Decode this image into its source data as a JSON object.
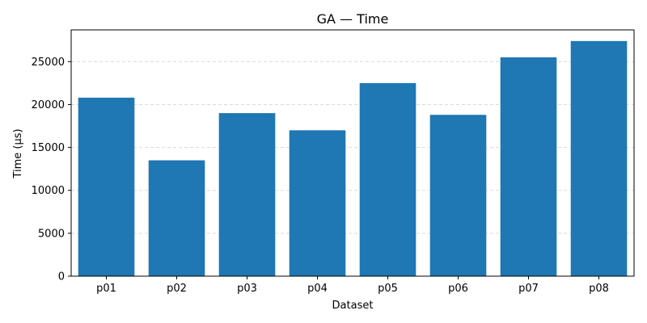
{
  "chart_data": {
    "type": "bar",
    "title": "GA — Time",
    "xlabel": "Dataset",
    "ylabel": "Time (µs)",
    "categories": [
      "p01",
      "p02",
      "p03",
      "p04",
      "p05",
      "p06",
      "p07",
      "p08"
    ],
    "values": [
      20800,
      13500,
      19000,
      17000,
      22500,
      18800,
      25500,
      27400
    ],
    "ylim": [
      0,
      28700
    ],
    "yticks": [
      0,
      5000,
      10000,
      15000,
      20000,
      25000
    ],
    "grid": "y-dashed",
    "colors": {
      "bar": "#1f77b4",
      "grid": "#d9d9d9",
      "axis": "#000000"
    }
  }
}
